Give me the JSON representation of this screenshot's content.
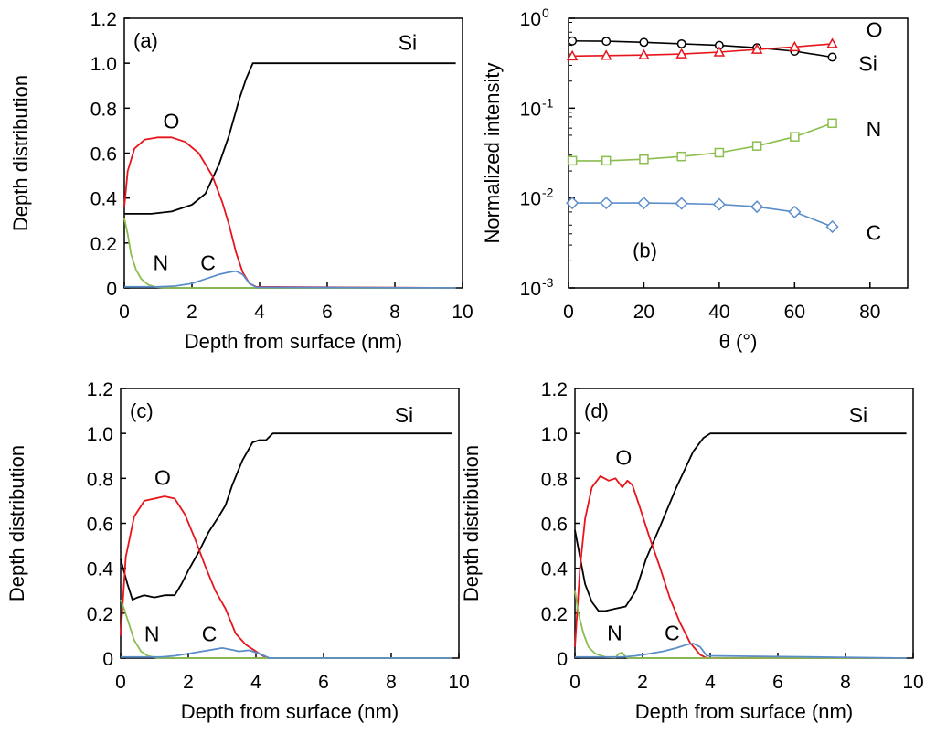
{
  "chart_data": [
    {
      "id": "a",
      "type": "line",
      "panel_label": "(a)",
      "xlabel": "Depth from surface (nm)",
      "ylabel": "Depth distribution",
      "xlim": [
        0,
        10
      ],
      "ylim": [
        0,
        1.2
      ],
      "xticks": [
        "0",
        "2",
        "4",
        "6",
        "8",
        "10"
      ],
      "yticks": [
        "0",
        "0.2",
        "0.4",
        "0.6",
        "0.8",
        "1.0",
        "1.2"
      ],
      "series": [
        {
          "name": "Si",
          "color": "#000000",
          "x": [
            0,
            0.3,
            0.8,
            1.4,
            2.0,
            2.4,
            2.8,
            3.1,
            3.4,
            3.6,
            3.8,
            4.0,
            9.8
          ],
          "y": [
            0.33,
            0.33,
            0.33,
            0.34,
            0.37,
            0.42,
            0.55,
            0.68,
            0.84,
            0.93,
            1.0,
            1.0,
            1.0
          ]
        },
        {
          "name": "O",
          "color": "#e8141b",
          "x": [
            0,
            0.1,
            0.3,
            0.6,
            1.0,
            1.4,
            1.8,
            2.2,
            2.6,
            2.9,
            3.1,
            3.3,
            3.5,
            3.7,
            3.9,
            9.8
          ],
          "y": [
            0.36,
            0.52,
            0.62,
            0.66,
            0.67,
            0.67,
            0.65,
            0.6,
            0.5,
            0.38,
            0.28,
            0.16,
            0.07,
            0.02,
            0.005,
            0
          ]
        },
        {
          "name": "N",
          "color": "#8cbd4f",
          "x": [
            0,
            0.1,
            0.2,
            0.35,
            0.5,
            0.7,
            0.9,
            1.2,
            9.8
          ],
          "y": [
            0.31,
            0.24,
            0.15,
            0.08,
            0.04,
            0.015,
            0.005,
            0,
            0
          ]
        },
        {
          "name": "C",
          "color": "#5b8ec9",
          "x": [
            0,
            1.0,
            1.5,
            2.0,
            2.4,
            2.8,
            3.1,
            3.3,
            3.5,
            3.7,
            3.9,
            9.8
          ],
          "y": [
            0.005,
            0.005,
            0.008,
            0.02,
            0.04,
            0.06,
            0.07,
            0.075,
            0.06,
            0.02,
            0.003,
            0
          ]
        }
      ],
      "annotations": [
        {
          "text": "Si",
          "x": 8.1,
          "y": 1.06
        },
        {
          "text": "O",
          "x": 1.15,
          "y": 0.71
        },
        {
          "text": "N",
          "x": 0.85,
          "y": 0.08
        },
        {
          "text": "C",
          "x": 2.25,
          "y": 0.08
        }
      ]
    },
    {
      "id": "b",
      "type": "scatter",
      "panel_label": "(b)",
      "xlabel": "θ (°)",
      "ylabel": "Normalized intensity",
      "yscale": "log",
      "xlim": [
        0,
        90
      ],
      "ylim_exp": [
        -3,
        0
      ],
      "xticks": [
        "0",
        "20",
        "40",
        "60",
        "80"
      ],
      "ytick_labels": [
        {
          "base": "10",
          "exp": "0"
        },
        {
          "base": "10",
          "exp": "-1"
        },
        {
          "base": "10",
          "exp": "-2"
        },
        {
          "base": "10",
          "exp": "-3"
        }
      ],
      "x": [
        1,
        10,
        20,
        30,
        40,
        50,
        60,
        70
      ],
      "series": [
        {
          "name": "Si",
          "color": "#000000",
          "marker": "circle",
          "values": [
            0.56,
            0.555,
            0.54,
            0.52,
            0.5,
            0.47,
            0.43,
            0.37
          ]
        },
        {
          "name": "O",
          "color": "#e8141b",
          "marker": "triangle",
          "values": [
            0.38,
            0.385,
            0.39,
            0.4,
            0.42,
            0.45,
            0.48,
            0.52
          ]
        },
        {
          "name": "N",
          "color": "#8cbd4f",
          "marker": "square",
          "values": [
            0.026,
            0.026,
            0.027,
            0.029,
            0.032,
            0.038,
            0.048,
            0.068
          ]
        },
        {
          "name": "C",
          "color": "#5b8ec9",
          "marker": "diamond",
          "values": [
            0.0088,
            0.0088,
            0.0088,
            0.0087,
            0.0085,
            0.008,
            0.007,
            0.0048
          ]
        }
      ],
      "annotations": [
        {
          "text": "O",
          "x": 79,
          "y": 0.62
        },
        {
          "text": "Si",
          "x": 77,
          "y": 0.26
        },
        {
          "text": "N",
          "x": 79,
          "y": 0.049
        },
        {
          "text": "C",
          "x": 79,
          "y": 0.0034
        },
        {
          "text": "(b)",
          "x": 17,
          "y": 0.0022
        }
      ]
    },
    {
      "id": "c",
      "type": "line",
      "panel_label": "(c)",
      "xlabel": "Depth from surface (nm)",
      "ylabel": "Depth distribution",
      "xlim": [
        0,
        10
      ],
      "ylim": [
        0,
        1.2
      ],
      "xticks": [
        "0",
        "2",
        "4",
        "6",
        "8",
        "10"
      ],
      "yticks": [
        "0",
        "0.2",
        "0.4",
        "0.6",
        "0.8",
        "1.0",
        "1.2"
      ],
      "series": [
        {
          "name": "Si",
          "color": "#000000",
          "x": [
            0,
            0.2,
            0.35,
            0.5,
            0.7,
            1.0,
            1.3,
            1.6,
            1.8,
            2.0,
            2.3,
            2.6,
            2.9,
            3.1,
            3.3,
            3.6,
            3.9,
            4.1,
            4.3,
            4.5,
            9.8
          ],
          "y": [
            0.44,
            0.33,
            0.26,
            0.27,
            0.28,
            0.27,
            0.28,
            0.28,
            0.33,
            0.39,
            0.47,
            0.56,
            0.63,
            0.68,
            0.77,
            0.88,
            0.96,
            0.97,
            0.97,
            1.0,
            1.0
          ]
        },
        {
          "name": "O",
          "color": "#e8141b",
          "x": [
            0,
            0.15,
            0.4,
            0.7,
            1.0,
            1.3,
            1.6,
            1.9,
            2.2,
            2.5,
            2.8,
            3.1,
            3.4,
            3.7,
            4.0,
            4.2,
            4.4,
            9.8
          ],
          "y": [
            0.1,
            0.45,
            0.63,
            0.7,
            0.71,
            0.72,
            0.71,
            0.64,
            0.53,
            0.41,
            0.3,
            0.22,
            0.11,
            0.06,
            0.03,
            0.01,
            0,
            0
          ]
        },
        {
          "name": "N",
          "color": "#8cbd4f",
          "x": [
            0,
            0.1,
            0.25,
            0.4,
            0.6,
            0.8,
            1.1,
            9.8
          ],
          "y": [
            0.26,
            0.22,
            0.15,
            0.08,
            0.03,
            0.01,
            0,
            0
          ]
        },
        {
          "name": "C",
          "color": "#5b8ec9",
          "x": [
            0,
            1.2,
            1.6,
            2.0,
            2.4,
            2.8,
            3.0,
            3.2,
            3.5,
            3.8,
            4.1,
            4.4,
            9.8
          ],
          "y": [
            0.005,
            0.005,
            0.01,
            0.02,
            0.03,
            0.04,
            0.045,
            0.04,
            0.03,
            0.035,
            0.02,
            0,
            0
          ]
        }
      ],
      "annotations": [
        {
          "text": "Si",
          "x": 8.1,
          "y": 1.05
        },
        {
          "text": "O",
          "x": 1.0,
          "y": 0.77
        },
        {
          "text": "N",
          "x": 0.7,
          "y": 0.075
        },
        {
          "text": "C",
          "x": 2.4,
          "y": 0.075
        }
      ]
    },
    {
      "id": "d",
      "type": "line",
      "panel_label": "(d)",
      "xlabel": "Depth from surface (nm)",
      "ylabel": "Depth distribution",
      "xlim": [
        0,
        10
      ],
      "ylim": [
        0,
        1.2
      ],
      "xticks": [
        "0",
        "2",
        "4",
        "6",
        "8",
        "10"
      ],
      "yticks": [
        "0",
        "0.2",
        "0.4",
        "0.6",
        "0.8",
        "1.0",
        "1.2"
      ],
      "series": [
        {
          "name": "Si",
          "color": "#000000",
          "x": [
            0,
            0.15,
            0.3,
            0.5,
            0.7,
            0.9,
            1.2,
            1.5,
            1.8,
            2.1,
            2.5,
            3.0,
            3.5,
            3.8,
            4.0,
            9.8
          ],
          "y": [
            0.57,
            0.45,
            0.33,
            0.25,
            0.21,
            0.21,
            0.22,
            0.23,
            0.3,
            0.44,
            0.58,
            0.76,
            0.92,
            0.98,
            1.0,
            1.0
          ]
        },
        {
          "name": "O",
          "color": "#e8141b",
          "x": [
            0,
            0.15,
            0.3,
            0.5,
            0.75,
            1.0,
            1.2,
            1.4,
            1.55,
            1.7,
            1.9,
            2.2,
            2.5,
            2.8,
            3.1,
            3.4,
            3.7,
            3.9,
            9.8
          ],
          "y": [
            0.05,
            0.4,
            0.62,
            0.76,
            0.81,
            0.79,
            0.8,
            0.76,
            0.79,
            0.77,
            0.68,
            0.54,
            0.41,
            0.27,
            0.16,
            0.07,
            0.015,
            0,
            0
          ]
        },
        {
          "name": "N",
          "color": "#8cbd4f",
          "x": [
            0,
            0.1,
            0.25,
            0.4,
            0.6,
            0.9,
            1.2,
            1.3,
            1.4,
            1.5,
            1.6,
            9.8
          ],
          "y": [
            0.3,
            0.2,
            0.11,
            0.05,
            0.02,
            0.005,
            0.003,
            0.02,
            0.025,
            0.005,
            0,
            0
          ]
        },
        {
          "name": "C",
          "color": "#5b8ec9",
          "x": [
            0,
            1.4,
            1.8,
            2.2,
            2.6,
            3.0,
            3.3,
            3.5,
            3.7,
            3.9,
            9.8
          ],
          "y": [
            0.005,
            0.005,
            0.01,
            0.02,
            0.03,
            0.045,
            0.06,
            0.065,
            0.05,
            0.01,
            0
          ]
        }
      ],
      "annotations": [
        {
          "text": "Si",
          "x": 8.1,
          "y": 1.05
        },
        {
          "text": "O",
          "x": 1.2,
          "y": 0.86
        },
        {
          "text": "N",
          "x": 0.95,
          "y": 0.08
        },
        {
          "text": "C",
          "x": 2.65,
          "y": 0.08
        }
      ]
    }
  ]
}
